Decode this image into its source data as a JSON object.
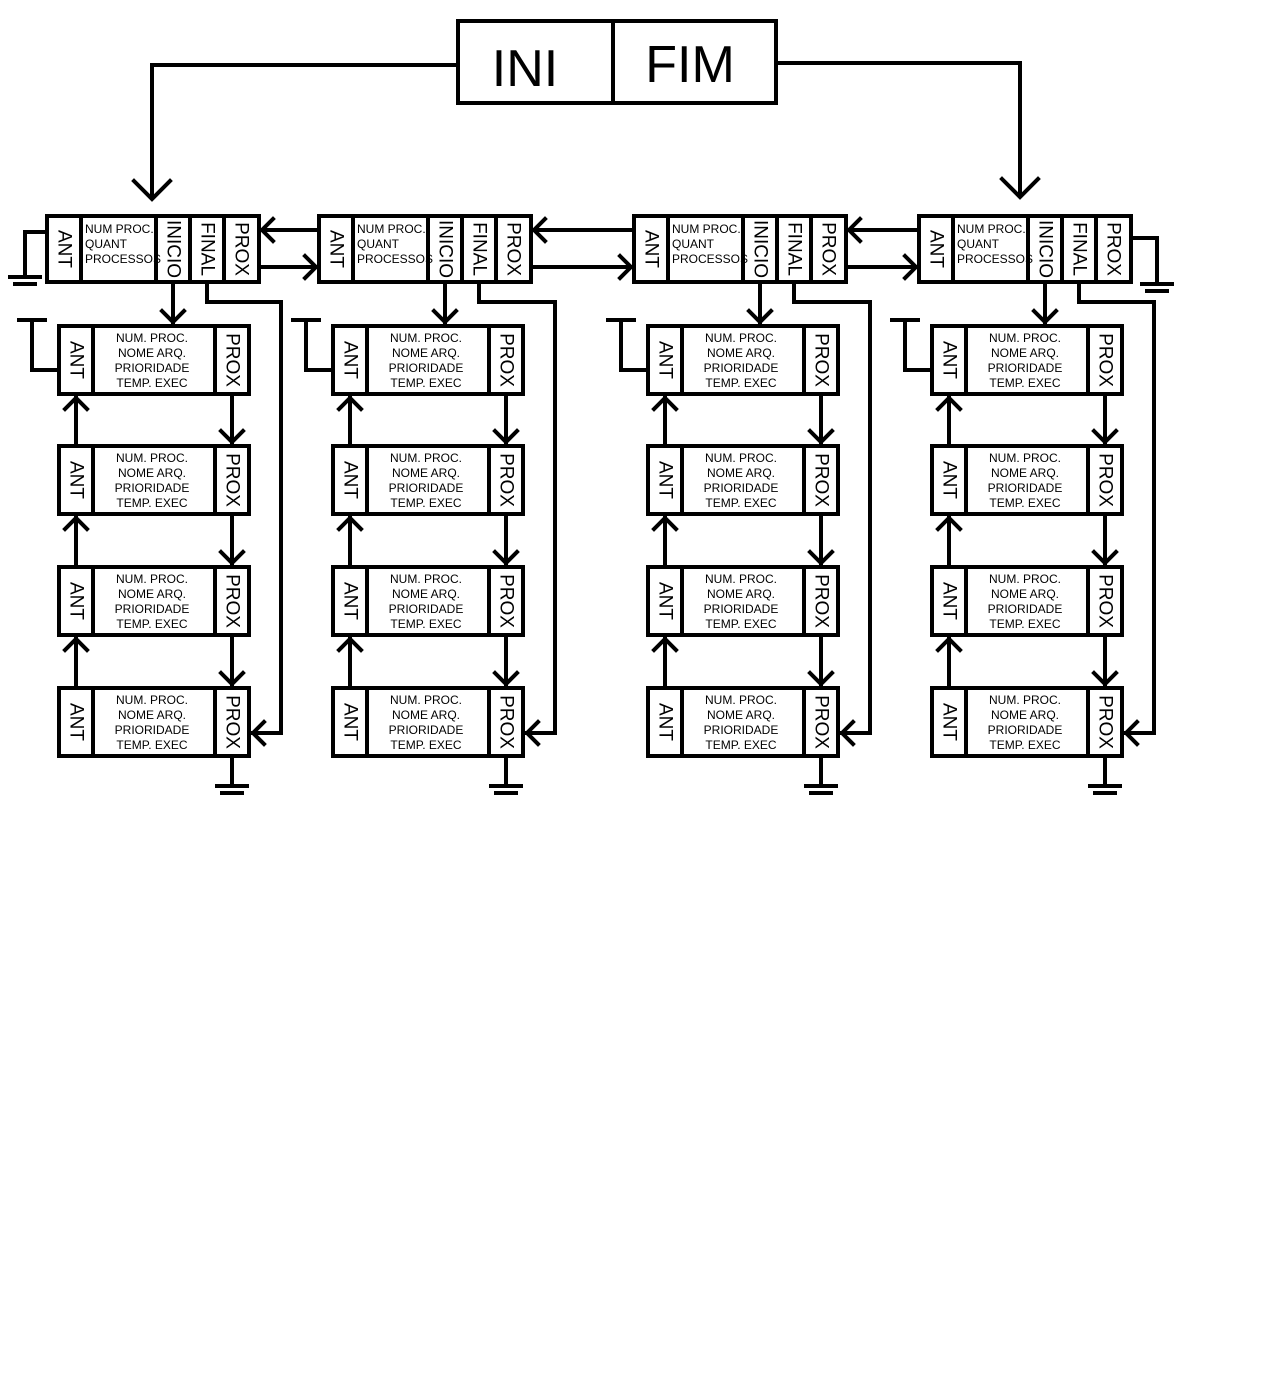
{
  "control": {
    "ini_label": "INI",
    "fim_label": "FIM"
  },
  "header_node": {
    "ant": "ANT",
    "info": [
      "NUM PROC.",
      "QUANT",
      "PROCESSOS"
    ],
    "inicio": "INICIO",
    "final": "FINAL",
    "prox": "PROX"
  },
  "process_node": {
    "ant": "ANT",
    "info": [
      "NUM. PROC.",
      "NOME ARQ.",
      "PRIORIDADE",
      "TEMP. EXEC"
    ],
    "prox": "PROX"
  },
  "list_count": 4,
  "nodes_per_list": 4
}
